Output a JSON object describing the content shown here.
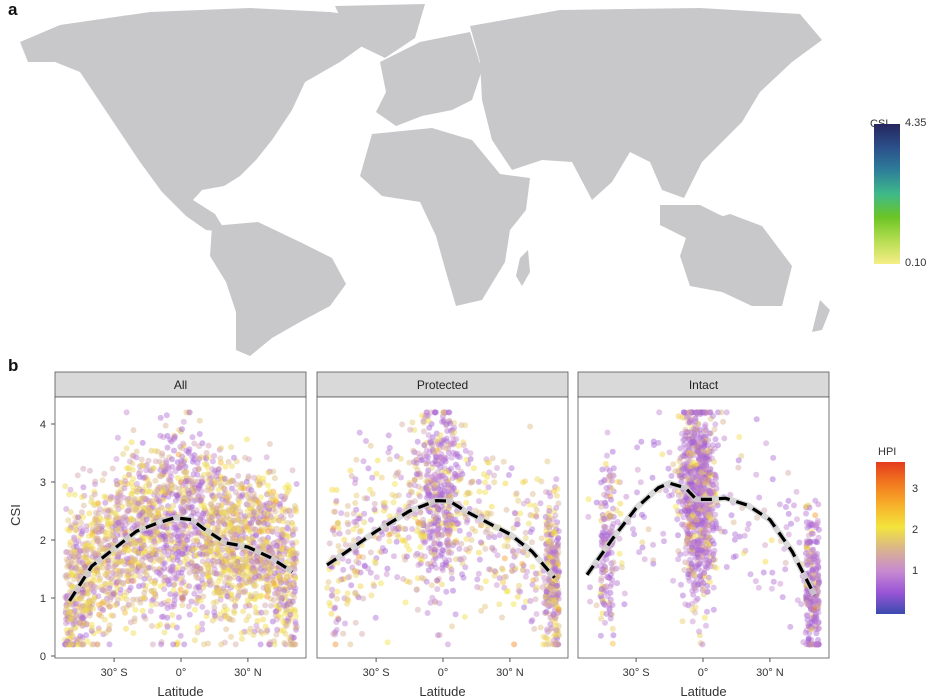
{
  "panel_a": {
    "label": "a",
    "legend": {
      "title": "CSI",
      "max_label": "4.35",
      "min_label": "0.10",
      "colors": [
        "#f6ee86",
        "#b6dd52",
        "#6cc524",
        "#3fb98a",
        "#2e7f9a",
        "#2b4f8a",
        "#26265e"
      ]
    },
    "land_color": "#c8c8ca"
  },
  "panel_b": {
    "label": "b",
    "legend": {
      "title": "HPI",
      "ticks": [
        "1",
        "2",
        "3"
      ],
      "colors": [
        "#3b4ab0",
        "#9a55d6",
        "#c88bd0",
        "#d9b48c",
        "#f3e43c",
        "#f7b12a",
        "#f27a1f",
        "#e53b1d"
      ]
    },
    "strip_color": "#d9d9d9"
  },
  "chart_data": [
    {
      "type": "scatter",
      "facet": "All",
      "xlabel": "Latitude",
      "ylabel": "CSI",
      "ylim": [
        0,
        4.35
      ],
      "yticks": [
        "0",
        "1",
        "2",
        "3",
        "4"
      ],
      "xticks": [
        "30° S",
        "0°",
        "30° N"
      ],
      "color_by": "HPI",
      "trend": {
        "lat": [
          -50,
          -40,
          -30,
          -20,
          -10,
          -3,
          0,
          5,
          10,
          20,
          30,
          40,
          50
        ],
        "csi": [
          0.95,
          1.55,
          1.85,
          2.15,
          2.3,
          2.38,
          2.37,
          2.35,
          2.2,
          1.95,
          1.88,
          1.7,
          1.45
        ]
      }
    },
    {
      "type": "scatter",
      "facet": "Protected",
      "xlabel": "Latitude",
      "ylabel": "",
      "ylim": [
        0,
        4.35
      ],
      "xticks": [
        "30° S",
        "0°",
        "30° N"
      ],
      "color_by": "HPI",
      "trend": {
        "lat": [
          -52,
          -45,
          -30,
          -15,
          -3,
          3,
          10,
          20,
          30,
          40,
          50
        ],
        "csi": [
          1.57,
          1.75,
          2.15,
          2.5,
          2.68,
          2.67,
          2.5,
          2.3,
          2.1,
          1.8,
          1.35
        ]
      }
    },
    {
      "type": "scatter",
      "facet": "Intact",
      "xlabel": "Latitude",
      "ylabel": "",
      "ylim": [
        0,
        4.35
      ],
      "xticks": [
        "30° S",
        "0°",
        "30° N"
      ],
      "color_by": "HPI",
      "trend": {
        "lat": [
          -52,
          -40,
          -30,
          -20,
          -15,
          -8,
          -3,
          3,
          10,
          20,
          30,
          40,
          50
        ],
        "csi": [
          1.4,
          2.05,
          2.55,
          2.9,
          2.98,
          2.9,
          2.7,
          2.7,
          2.72,
          2.6,
          2.35,
          1.8,
          1.05
        ]
      }
    }
  ]
}
